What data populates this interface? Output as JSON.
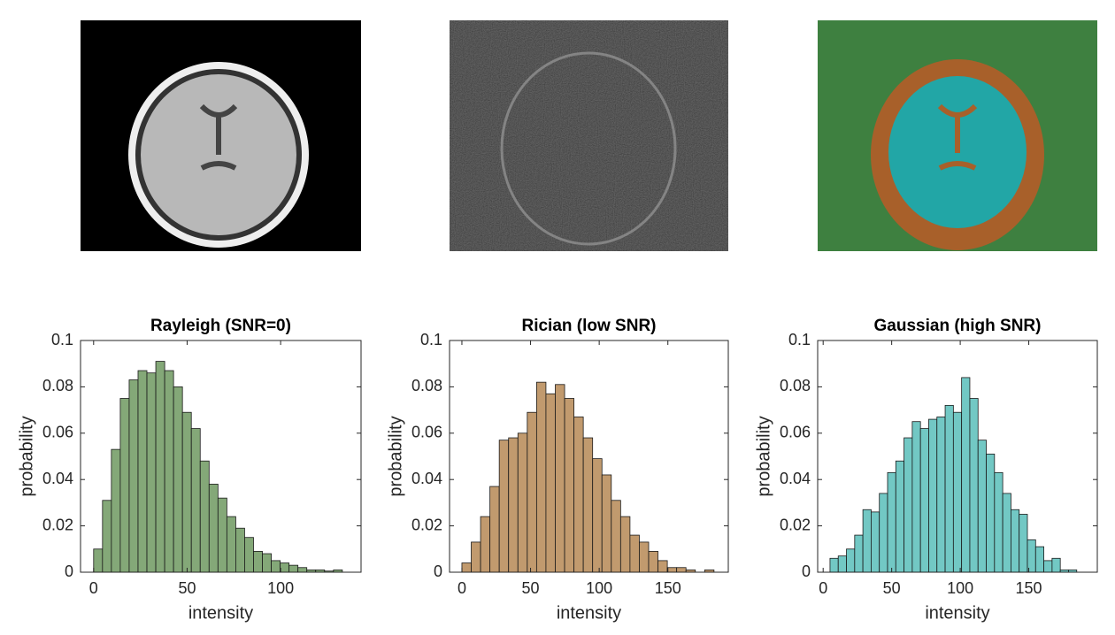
{
  "chart_data": [
    {
      "type": "histogram",
      "title": "Rayleigh (SNR=0)",
      "xlabel": "intensity",
      "ylabel": "probability",
      "color": "#84a878",
      "bins": [
        0,
        4.75,
        9.5,
        14.25,
        19,
        23.75,
        28.5,
        33.25,
        38,
        42.75,
        47.5,
        52.25,
        57,
        61.75,
        66.5,
        71.25,
        76,
        80.75,
        85.5,
        90.25,
        95,
        99.75,
        104.5,
        109.25,
        114,
        118.75,
        123.5,
        128.25,
        133
      ],
      "values": [
        0.01,
        0.031,
        0.053,
        0.075,
        0.083,
        0.087,
        0.086,
        0.091,
        0.087,
        0.08,
        0.069,
        0.062,
        0.048,
        0.038,
        0.032,
        0.024,
        0.019,
        0.015,
        0.009,
        0.008,
        0.005,
        0.004,
        0.003,
        0.002,
        0.001,
        0.001,
        0.0005,
        0.001
      ],
      "xlim": [
        -7,
        143
      ],
      "ylim": [
        0,
        0.1
      ],
      "xticks": [
        0,
        50,
        100
      ],
      "yticks": [
        0,
        0.02,
        0.04,
        0.06,
        0.08,
        0.1
      ]
    },
    {
      "type": "histogram",
      "title": "Rician (low SNR)",
      "xlabel": "intensity",
      "ylabel": "probability",
      "color": "#c19a6e",
      "bins": [
        0,
        6.8,
        13.6,
        20.4,
        27.2,
        34,
        40.8,
        47.6,
        54.4,
        61.2,
        68,
        74.8,
        81.6,
        88.4,
        95.2,
        102,
        108.8,
        115.6,
        122.4,
        129.2,
        136,
        142.8,
        149.6,
        156.4,
        163.2,
        170,
        176.8,
        183.6
      ],
      "values": [
        0.004,
        0.013,
        0.024,
        0.037,
        0.057,
        0.058,
        0.06,
        0.069,
        0.082,
        0.077,
        0.081,
        0.075,
        0.067,
        0.058,
        0.049,
        0.042,
        0.031,
        0.024,
        0.016,
        0.013,
        0.009,
        0.005,
        0.002,
        0.002,
        0.001,
        0,
        0.001
      ],
      "xlim": [
        -9,
        194
      ],
      "ylim": [
        0,
        0.1
      ],
      "xticks": [
        0,
        50,
        100,
        150
      ],
      "yticks": [
        0,
        0.02,
        0.04,
        0.06,
        0.08,
        0.1
      ]
    },
    {
      "type": "histogram",
      "title": "Gaussian (high SNR)",
      "xlabel": "intensity",
      "ylabel": "probability",
      "color": "#72c8c4",
      "bins": [
        5,
        11,
        17,
        23,
        29,
        35,
        41,
        47,
        53,
        59,
        65,
        71,
        77,
        83,
        89,
        95,
        101,
        107,
        113,
        119,
        125,
        131,
        137,
        143,
        149,
        155,
        161,
        167,
        173,
        179,
        185
      ],
      "values": [
        0.006,
        0.007,
        0.01,
        0.016,
        0.027,
        0.026,
        0.034,
        0.043,
        0.048,
        0.058,
        0.065,
        0.062,
        0.066,
        0.067,
        0.072,
        0.069,
        0.084,
        0.075,
        0.057,
        0.051,
        0.043,
        0.034,
        0.027,
        0.025,
        0.014,
        0.011,
        0.005,
        0.006,
        0.001,
        0.001
      ],
      "xlim": [
        -4,
        200
      ],
      "ylim": [
        0,
        0.1
      ],
      "xticks": [
        0,
        50,
        100,
        150
      ],
      "yticks": [
        0,
        0.02,
        0.04,
        0.06,
        0.08,
        0.1
      ]
    }
  ]
}
